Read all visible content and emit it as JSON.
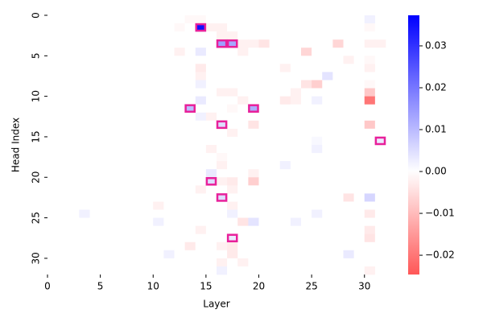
{
  "chart_data": {
    "type": "heatmap",
    "x_label": "Layer",
    "y_label": "Head Index",
    "xlim": [
      0,
      32
    ],
    "ylim": [
      32,
      0
    ],
    "xticks": [
      0,
      5,
      10,
      15,
      20,
      25,
      30
    ],
    "yticks": [
      0,
      5,
      10,
      15,
      20,
      25,
      30
    ],
    "values": [
      [
        0,
        0,
        0,
        0,
        0,
        0,
        0,
        0,
        0,
        0,
        0,
        0,
        0,
        -0.001,
        -0.001,
        0,
        0,
        0,
        0,
        0,
        0,
        0,
        0,
        0,
        0,
        0,
        0,
        0,
        0,
        0,
        0.002,
        0
      ],
      [
        0,
        0,
        0,
        0,
        0,
        0,
        0,
        0,
        0,
        0,
        0,
        0,
        -0.001,
        0,
        0.035,
        -0.002,
        -0.002,
        0,
        0,
        0,
        0,
        0,
        0,
        0,
        0,
        0,
        0,
        0,
        0,
        0,
        -0.001,
        0
      ],
      [
        0,
        0,
        0,
        0,
        0,
        0,
        0,
        0,
        0,
        0,
        0,
        0,
        0,
        0,
        0,
        0,
        -0.002,
        -0.002,
        0,
        0,
        0,
        0,
        0,
        0,
        0,
        0,
        0,
        0,
        0,
        0,
        0,
        0
      ],
      [
        0,
        0,
        0,
        0,
        0,
        0,
        0,
        0,
        0,
        0,
        0,
        0,
        0,
        0,
        0,
        0,
        0.014,
        0.013,
        -0.002,
        -0.002,
        -0.004,
        0,
        0,
        0,
        0,
        0,
        0,
        -0.006,
        0,
        0,
        -0.002,
        -0.002
      ],
      [
        0,
        0,
        0,
        0,
        0,
        0,
        0,
        0,
        0,
        0,
        0,
        0,
        -0.002,
        0,
        0.003,
        0,
        0,
        0,
        -0.002,
        0,
        0,
        0,
        0,
        0,
        -0.006,
        0,
        0,
        0,
        0,
        0,
        0,
        0
      ],
      [
        0,
        0,
        0,
        0,
        0,
        0,
        0,
        0,
        0,
        0,
        0,
        0,
        0,
        0,
        0,
        0,
        0,
        0,
        0,
        0,
        0,
        0,
        0,
        0,
        0,
        0,
        0,
        0,
        -0.002,
        0,
        -0.001,
        0
      ],
      [
        0,
        0,
        0,
        0,
        0,
        0,
        0,
        0,
        0,
        0,
        0,
        0,
        0,
        0,
        -0.003,
        0,
        0,
        0,
        0,
        0,
        0,
        0,
        -0.002,
        0,
        0,
        0,
        0,
        0,
        0,
        0,
        -0.002,
        0
      ],
      [
        0,
        0,
        0,
        0,
        0,
        0,
        0,
        0,
        0,
        0,
        0,
        0,
        0,
        0,
        -0.002,
        0,
        0,
        0,
        0,
        0,
        0,
        0,
        0,
        0,
        0,
        0,
        0.004,
        0,
        0,
        0,
        0,
        0
      ],
      [
        0,
        0,
        0,
        0,
        0,
        0,
        0,
        0,
        0,
        0,
        0,
        0,
        0,
        0,
        0.002,
        0,
        0,
        0,
        0,
        0,
        0,
        0,
        0,
        0,
        -0.004,
        -0.007,
        0,
        0,
        0,
        0,
        -0.001,
        0
      ],
      [
        0,
        0,
        0,
        0,
        0,
        0,
        0,
        0,
        0,
        0,
        0,
        0,
        0,
        0,
        0,
        0,
        -0.002,
        -0.002,
        0,
        0,
        0,
        0,
        0,
        -0.002,
        0,
        0,
        0,
        0,
        0,
        0,
        -0.008,
        0
      ],
      [
        0,
        0,
        0,
        0,
        0,
        0,
        0,
        0,
        0,
        0,
        0,
        0,
        0,
        0,
        0.003,
        0,
        0,
        0,
        -0.002,
        0,
        0,
        0,
        -0.003,
        -0.002,
        0,
        0.002,
        0,
        0,
        0,
        0,
        -0.02,
        0
      ],
      [
        0,
        0,
        0,
        0,
        0,
        0,
        0,
        0,
        0,
        0,
        0,
        0,
        0,
        0.01,
        0,
        0,
        0,
        -0.001,
        0,
        0.012,
        0,
        0,
        0,
        0,
        0,
        0,
        0,
        0,
        0,
        0,
        0,
        0
      ],
      [
        0,
        0,
        0,
        0,
        0,
        0,
        0,
        0,
        0,
        0,
        0,
        0,
        0,
        0,
        0.002,
        -0.002,
        0,
        0,
        0,
        0,
        0,
        0,
        0,
        0,
        0,
        0,
        0,
        0,
        0,
        0,
        0,
        0
      ],
      [
        0,
        0,
        0,
        0,
        0,
        0,
        0,
        0,
        0,
        0,
        0,
        0,
        0,
        0,
        0,
        0,
        0.005,
        0,
        0,
        -0.004,
        0,
        0,
        0,
        0,
        0,
        0,
        0,
        0,
        0,
        0,
        -0.008,
        0
      ],
      [
        0,
        0,
        0,
        0,
        0,
        0,
        0,
        0,
        0,
        0,
        0,
        0,
        0,
        0,
        0,
        0,
        0,
        -0.002,
        0,
        0,
        0,
        0,
        0,
        0,
        0,
        0,
        0,
        0,
        0,
        0,
        0,
        0
      ],
      [
        0,
        0,
        0,
        0,
        0,
        0,
        0,
        0,
        0,
        0,
        0,
        0,
        0,
        0,
        0,
        0,
        0,
        0,
        0,
        0,
        0,
        0,
        0,
        0,
        0,
        0.001,
        0,
        0,
        0,
        0,
        0,
        0.003
      ],
      [
        0,
        0,
        0,
        0,
        0,
        0,
        0,
        0,
        0,
        0,
        0,
        0,
        0,
        0,
        0,
        -0.002,
        0,
        0,
        0,
        0,
        0,
        0,
        0,
        0,
        0,
        0.002,
        0,
        0,
        0,
        0,
        0,
        0
      ],
      [
        0,
        0,
        0,
        0,
        0,
        0,
        0,
        0,
        0,
        0,
        0,
        0,
        0,
        0,
        0,
        0,
        -0.001,
        0,
        0,
        0,
        0,
        0,
        0,
        0,
        0,
        0,
        0,
        0,
        0,
        0,
        0,
        0
      ],
      [
        0,
        0,
        0,
        0,
        0,
        0,
        0,
        0,
        0,
        0,
        0,
        0,
        0,
        0,
        0,
        0,
        -0.002,
        0,
        0,
        0,
        0,
        0,
        0.002,
        0,
        0,
        0,
        0,
        0,
        0,
        0,
        0,
        0
      ],
      [
        0,
        0,
        0,
        0,
        0,
        0,
        0,
        0,
        0,
        0,
        0,
        0,
        0,
        0,
        0,
        0.003,
        0,
        0,
        0,
        -0.002,
        0,
        0,
        0,
        0,
        0,
        0,
        0,
        0,
        0,
        0,
        0,
        0
      ],
      [
        0,
        0,
        0,
        0,
        0,
        0,
        0,
        0,
        0,
        0,
        0,
        0,
        0,
        0,
        0,
        0.005,
        -0.002,
        -0.003,
        0,
        -0.007,
        0,
        0,
        0,
        0,
        0,
        0,
        0,
        0,
        0,
        0,
        0,
        0
      ],
      [
        0,
        0,
        0,
        0,
        0,
        0,
        0,
        0,
        0,
        0,
        0,
        0,
        0,
        0,
        -0.002,
        0,
        0,
        -0.002,
        0,
        0,
        0,
        0,
        0,
        0,
        0,
        0,
        0,
        0,
        0,
        0,
        0,
        0
      ],
      [
        0,
        0,
        0,
        0,
        0,
        0,
        0,
        0,
        0,
        0,
        0,
        0,
        0,
        0,
        0,
        0,
        0.005,
        0,
        0,
        0,
        0,
        0,
        0,
        0,
        0,
        0,
        0,
        0,
        -0.004,
        0,
        0.006,
        0
      ],
      [
        0,
        0,
        0,
        0,
        0,
        0,
        0,
        0,
        0,
        0,
        -0.002,
        0,
        0,
        0,
        0,
        0,
        0,
        -0.002,
        0,
        0,
        0,
        0,
        0,
        0,
        0,
        0,
        0,
        0,
        0,
        0,
        0,
        0
      ],
      [
        0,
        0,
        0,
        0.002,
        0,
        0,
        0,
        0,
        0,
        0,
        0,
        0,
        0,
        0,
        0,
        0,
        0,
        0.002,
        0,
        0,
        0,
        0,
        0,
        0,
        0,
        0.002,
        0,
        0,
        0,
        0,
        -0.003,
        0
      ],
      [
        0,
        0,
        0,
        0,
        0,
        0,
        0,
        0,
        0,
        0,
        0.002,
        0,
        0,
        0,
        0,
        0,
        0,
        0,
        -0.004,
        0.004,
        0,
        0,
        0,
        0.002,
        0,
        0,
        0,
        0,
        0,
        0,
        0,
        0
      ],
      [
        0,
        0,
        0,
        0,
        0,
        0,
        0,
        0,
        0,
        0,
        0,
        0,
        0,
        0,
        -0.002,
        0,
        0,
        0,
        0,
        0,
        0,
        0,
        0,
        0,
        0,
        0,
        0,
        0,
        0,
        0,
        -0.003,
        0
      ],
      [
        0,
        0,
        0,
        0,
        0,
        0,
        0,
        0,
        0,
        0,
        0,
        0,
        0,
        0,
        0,
        0,
        0,
        0.003,
        0,
        0,
        0,
        0,
        0,
        0,
        0,
        0,
        0,
        0,
        0,
        0,
        -0.004,
        0
      ],
      [
        0,
        0,
        0,
        0,
        0,
        0,
        0,
        0,
        0,
        0,
        0,
        0,
        0,
        -0.003,
        0,
        0,
        -0.002,
        -0.003,
        0,
        0,
        0,
        0,
        0,
        0,
        0,
        0,
        0,
        0,
        0,
        0,
        0,
        0
      ],
      [
        0,
        0,
        0,
        0,
        0,
        0,
        0,
        0,
        0,
        0,
        0,
        0.002,
        0,
        0,
        0,
        0,
        0,
        -0.003,
        0,
        0,
        0,
        0,
        0,
        0,
        0,
        0,
        0,
        0,
        0.003,
        0,
        0,
        0
      ],
      [
        0,
        0,
        0,
        0,
        0,
        0,
        0,
        0,
        0,
        0,
        0,
        0,
        0,
        0,
        0,
        0,
        -0.002,
        0,
        -0.002,
        0,
        0,
        0,
        0,
        0,
        0,
        0,
        0,
        0,
        0,
        0,
        0,
        0
      ],
      [
        0,
        0,
        0,
        0,
        0,
        0,
        0,
        0,
        0,
        0,
        0,
        0,
        0,
        0,
        0,
        0,
        0.002,
        0,
        0,
        0,
        0,
        0,
        0,
        0,
        0,
        0,
        0,
        0,
        0,
        0,
        -0.002,
        0
      ]
    ],
    "colormap": [
      "#ff0000",
      "#ffffff",
      "#0000ff"
    ],
    "colorbar": {
      "vlim": [
        -0.0246,
        0.0373
      ],
      "ticks": [
        {
          "value": -0.02,
          "label": "−0.02"
        },
        {
          "value": -0.01,
          "label": "−0.01"
        },
        {
          "value": 0,
          "label": "0.00"
        },
        0.01,
        0.02,
        0.03
      ]
    },
    "highlight": {
      "color": "#e8209a",
      "cells": [
        [
          1,
          14
        ],
        [
          3,
          16
        ],
        [
          3,
          17
        ],
        [
          11,
          13
        ],
        [
          11,
          19
        ],
        [
          13,
          16
        ],
        [
          15,
          31
        ],
        [
          20,
          15
        ],
        [
          22,
          16
        ],
        [
          27,
          17
        ]
      ]
    }
  }
}
